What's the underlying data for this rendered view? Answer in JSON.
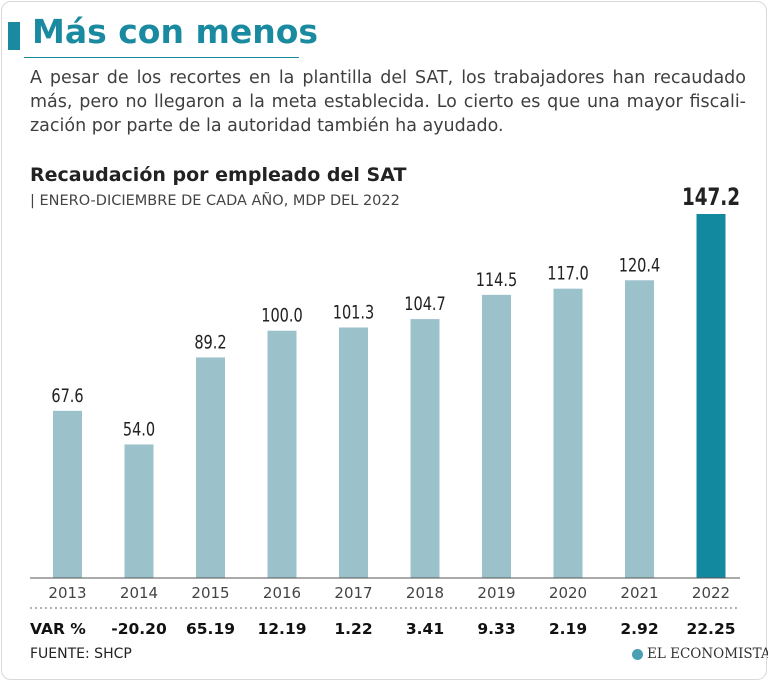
{
  "header": {
    "title": "Más con menos",
    "lead": "A pesar de los recortes en la plantilla del SAT, los trabajadores han recaudado más, pero no llegaron a la meta establecida. Lo cierto es que una mayor fiscali-zación por parte de la autoridad también ha ayudado."
  },
  "chart_data": {
    "type": "bar",
    "title": "Recaudación por empleado del SAT",
    "subtitle": "| ENERO-DICIEMBRE DE CADA AÑO, MDP DEL 2022",
    "categories": [
      "2013",
      "2014",
      "2015",
      "2016",
      "2017",
      "2018",
      "2019",
      "2020",
      "2021",
      "2022"
    ],
    "values": [
      67.6,
      54.0,
      89.2,
      100.0,
      101.3,
      104.7,
      114.5,
      117.0,
      120.4,
      147.2
    ],
    "labels": [
      "67.6",
      "54.0",
      "89.2",
      "100.0",
      "101.3",
      "104.7",
      "114.5",
      "117.0",
      "120.4",
      "147.2"
    ],
    "ylim": [
      0,
      160
    ],
    "grid": false,
    "xlabel": "",
    "ylabel": "",
    "highlight_index": 9,
    "colors": {
      "bar": "#9bc1cb",
      "highlight": "#13899f"
    },
    "var_label": "VAR %",
    "var_values": [
      "-20.20",
      "65.19",
      "12.19",
      "1.22",
      "3.41",
      "9.33",
      "2.19",
      "2.92",
      "22.25"
    ]
  },
  "footer": {
    "source": "FUENTE: SHCP",
    "brand": "EL ECONOMISTA",
    "brand_icon": "globe-icon"
  }
}
